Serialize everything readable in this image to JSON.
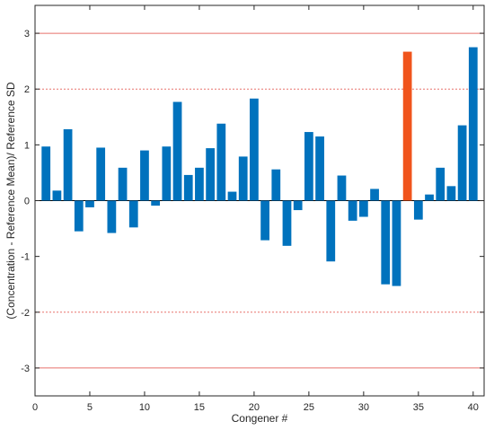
{
  "chart_data": {
    "type": "bar",
    "xlabel": "Congener #",
    "ylabel": "(Concentration - Reference Mean)/ Reference SD",
    "xlim": [
      0,
      41
    ],
    "ylim": [
      -3.5,
      3.5
    ],
    "x_ticks": [
      0,
      5,
      10,
      15,
      20,
      25,
      30,
      35,
      40
    ],
    "y_ticks": [
      -3,
      -2,
      -1,
      0,
      1,
      2,
      3
    ],
    "grid": false,
    "bar_color": "#0072BD",
    "highlight_color": "#F0541C",
    "highlight_index": 34,
    "reference_lines": [
      {
        "y": 3,
        "style": "solid",
        "color": "#E8726B"
      },
      {
        "y": 2,
        "style": "dotted",
        "color": "#E8726B"
      },
      {
        "y": 0,
        "style": "solid",
        "color": "#000000"
      },
      {
        "y": -2,
        "style": "dotted",
        "color": "#E8726B"
      },
      {
        "y": -3,
        "style": "solid",
        "color": "#E8726B"
      }
    ],
    "x": [
      1,
      2,
      3,
      4,
      5,
      6,
      7,
      8,
      9,
      10,
      11,
      12,
      13,
      14,
      15,
      16,
      17,
      18,
      19,
      20,
      21,
      22,
      23,
      24,
      25,
      26,
      27,
      28,
      29,
      30,
      31,
      32,
      33,
      34,
      35,
      36,
      37,
      38,
      39,
      40
    ],
    "values": [
      0.97,
      0.18,
      1.28,
      -0.55,
      -0.12,
      0.95,
      -0.58,
      0.59,
      -0.48,
      0.9,
      -0.09,
      0.97,
      1.77,
      0.46,
      0.59,
      0.94,
      1.38,
      0.16,
      0.79,
      1.83,
      -0.71,
      0.56,
      -0.81,
      -0.17,
      1.23,
      1.15,
      -1.09,
      0.45,
      -0.36,
      -0.29,
      0.21,
      -1.5,
      -1.53,
      2.67,
      -0.34,
      0.11,
      0.59,
      0.26,
      1.35,
      2.75
    ]
  }
}
